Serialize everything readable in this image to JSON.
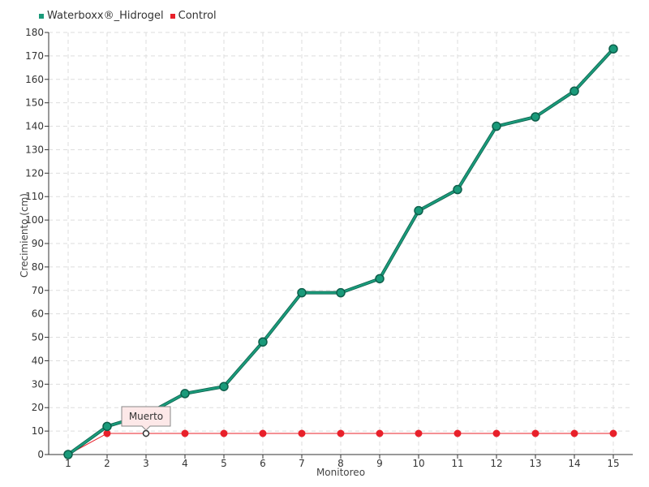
{
  "chart_data": {
    "type": "line",
    "xlabel": "Monitoreo",
    "ylabel": "Crecimiento (cm)",
    "x": [
      1,
      2,
      3,
      4,
      5,
      6,
      7,
      8,
      9,
      10,
      11,
      12,
      13,
      14,
      15
    ],
    "ylim": [
      0,
      180
    ],
    "ytick_step": 10,
    "grid": true,
    "legend_position": "top-left",
    "series": [
      {
        "name": "Waterboxx®_Hidrogel",
        "color": "#1a9a7a",
        "values": [
          0,
          12,
          17,
          26,
          29,
          48,
          69,
          69,
          75,
          104,
          113,
          140,
          144,
          155,
          173
        ]
      },
      {
        "name": "Control",
        "color": "#e8202a",
        "values": [
          0,
          9,
          9,
          9,
          9,
          9,
          9,
          9,
          9,
          9,
          9,
          9,
          9,
          9,
          9
        ]
      }
    ],
    "annotation": {
      "text": "Muerto",
      "series": "Control",
      "x": 3,
      "y": 9
    }
  }
}
